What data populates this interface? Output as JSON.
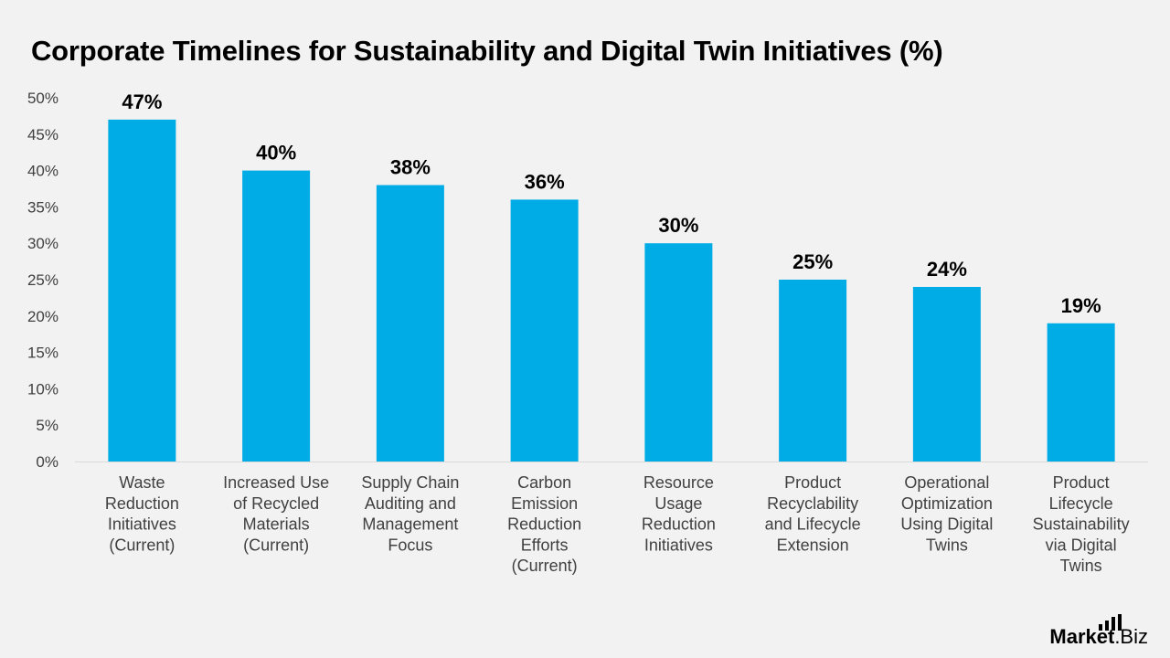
{
  "chart_data": {
    "type": "bar",
    "title": "Corporate Timelines for Sustainability and Digital Twin Initiatives (%)",
    "categories": [
      "Waste Reduction Initiatives (Current)",
      "Increased Use of Recycled Materials (Current)",
      "Supply Chain Auditing and Management Focus",
      "Carbon Emission Reduction Efforts (Current)",
      "Resource Usage Reduction Initiatives",
      "Product Recyclability and Lifecycle Extension",
      "Operational Optimization Using Digital Twins",
      "Product Lifecycle Sustainability via Digital Twins"
    ],
    "category_lines": [
      [
        "Waste",
        "Reduction",
        "Initiatives",
        "(Current)"
      ],
      [
        "Increased Use",
        "of Recycled",
        "Materials",
        "(Current)"
      ],
      [
        "Supply Chain",
        "Auditing and",
        "Management",
        "Focus"
      ],
      [
        "Carbon",
        "Emission",
        "Reduction",
        "Efforts",
        "(Current)"
      ],
      [
        "Resource",
        "Usage",
        "Reduction",
        "Initiatives"
      ],
      [
        "Product",
        "Recyclability",
        "and Lifecycle",
        "Extension"
      ],
      [
        "Operational",
        "Optimization",
        "Using Digital",
        "Twins"
      ],
      [
        "Product",
        "Lifecycle",
        "Sustainability",
        "via Digital",
        "Twins"
      ]
    ],
    "values": [
      47,
      40,
      38,
      36,
      30,
      25,
      24,
      19
    ],
    "value_labels": [
      "47%",
      "40%",
      "38%",
      "36%",
      "30%",
      "25%",
      "24%",
      "19%"
    ],
    "ylim": [
      0,
      50
    ],
    "yticks": [
      0,
      5,
      10,
      15,
      20,
      25,
      30,
      35,
      40,
      45,
      50
    ],
    "ytick_labels": [
      "0%",
      "5%",
      "10%",
      "15%",
      "20%",
      "25%",
      "30%",
      "35%",
      "40%",
      "45%",
      "50%"
    ],
    "grid": false,
    "bar_color": "#00ace6",
    "xlabel": "",
    "ylabel": ""
  },
  "branding": {
    "logo_bold": "Market",
    "logo_rest": ".Biz"
  }
}
